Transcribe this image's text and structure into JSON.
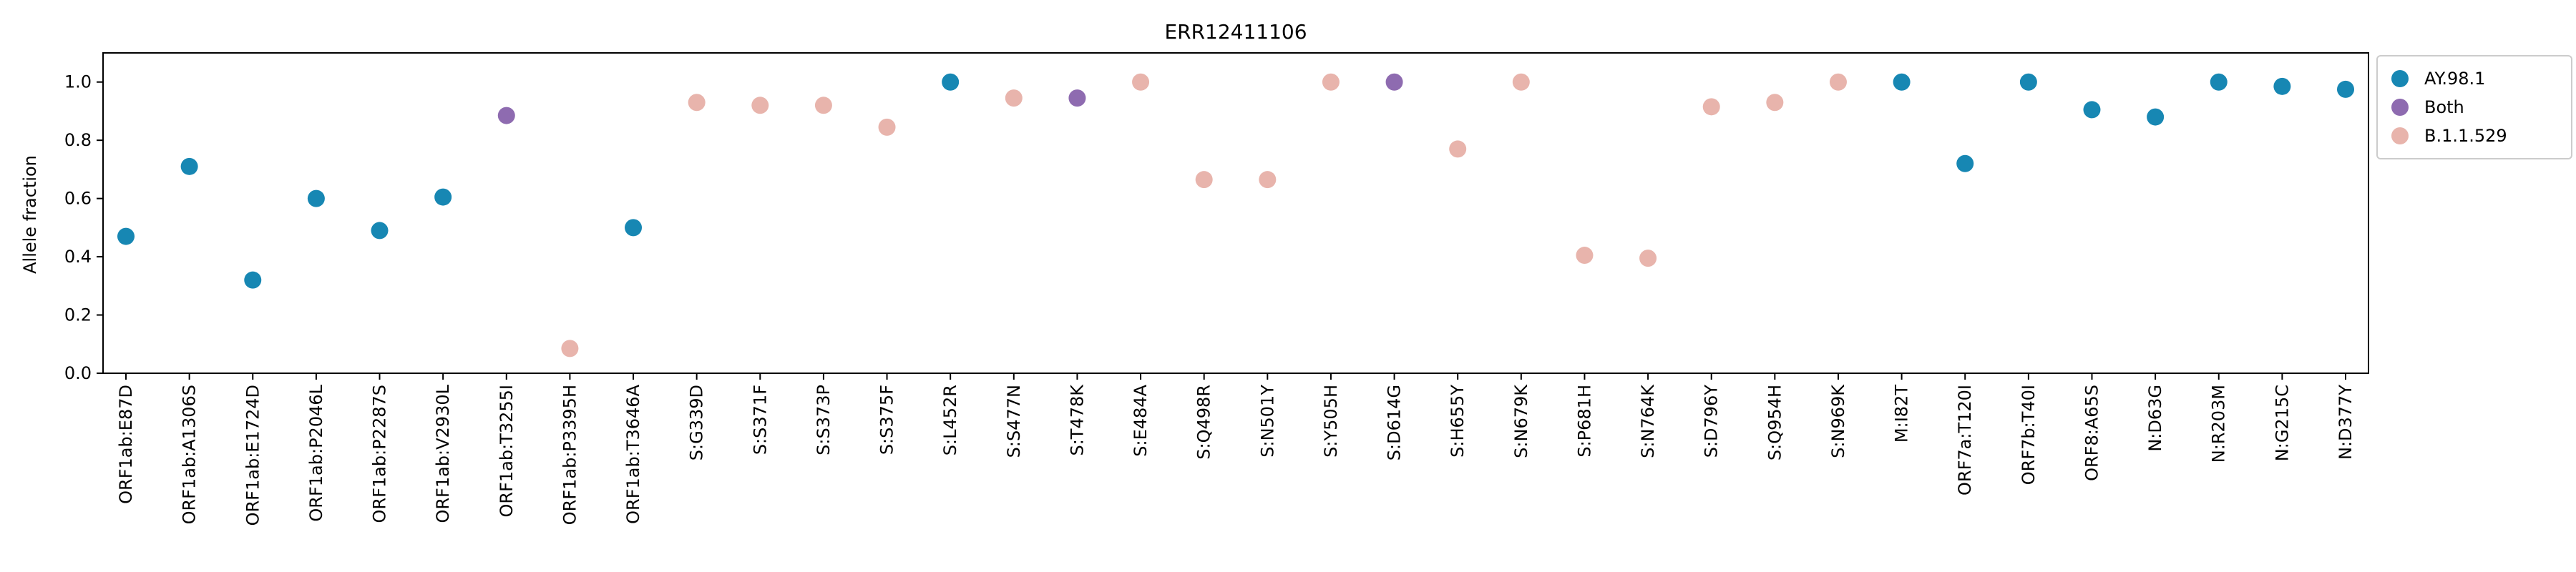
{
  "chart_data": {
    "type": "scatter",
    "title": "ERR12411106",
    "xlabel": "",
    "ylabel": "Allele fraction",
    "ylim": [
      0.0,
      1.1
    ],
    "yticks": [
      "0.0",
      "0.2",
      "0.4",
      "0.6",
      "0.8",
      "1.0"
    ],
    "grid": false,
    "legend_position": "right, outside plot, top",
    "categories": [
      "ORF1ab:E87D",
      "ORF1ab:A1306S",
      "ORF1ab:E1724D",
      "ORF1ab:P2046L",
      "ORF1ab:P2287S",
      "ORF1ab:V2930L",
      "ORF1ab:T3255I",
      "ORF1ab:P3395H",
      "ORF1ab:T3646A",
      "S:G339D",
      "S:S371F",
      "S:S373P",
      "S:S375F",
      "S:L452R",
      "S:S477N",
      "S:T478K",
      "S:E484A",
      "S:Q498R",
      "S:N501Y",
      "S:Y505H",
      "S:D614G",
      "S:H655Y",
      "S:N679K",
      "S:P681H",
      "S:N764K",
      "S:D796Y",
      "S:Q954H",
      "S:N969K",
      "M:I82T",
      "ORF7a:T120I",
      "ORF7b:T40I",
      "ORF8:A65S",
      "N:D63G",
      "N:R203M",
      "N:G215C",
      "N:D377Y"
    ],
    "series": [
      {
        "name": "AY.98.1",
        "color": "#1787b3"
      },
      {
        "name": "Both",
        "color": "#8e6bb0"
      },
      {
        "name": "B.1.1.529",
        "color": "#e8b4ac"
      }
    ],
    "points": [
      {
        "x": "ORF1ab:E87D",
        "y": 0.47,
        "series": "AY.98.1"
      },
      {
        "x": "ORF1ab:A1306S",
        "y": 0.71,
        "series": "AY.98.1"
      },
      {
        "x": "ORF1ab:E1724D",
        "y": 0.32,
        "series": "AY.98.1"
      },
      {
        "x": "ORF1ab:P2046L",
        "y": 0.6,
        "series": "AY.98.1"
      },
      {
        "x": "ORF1ab:P2287S",
        "y": 0.49,
        "series": "AY.98.1"
      },
      {
        "x": "ORF1ab:V2930L",
        "y": 0.605,
        "series": "AY.98.1"
      },
      {
        "x": "ORF1ab:T3255I",
        "y": 0.885,
        "series": "Both"
      },
      {
        "x": "ORF1ab:P3395H",
        "y": 0.085,
        "series": "B.1.1.529"
      },
      {
        "x": "ORF1ab:T3646A",
        "y": 0.5,
        "series": "AY.98.1"
      },
      {
        "x": "S:G339D",
        "y": 0.93,
        "series": "B.1.1.529"
      },
      {
        "x": "S:S371F",
        "y": 0.92,
        "series": "B.1.1.529"
      },
      {
        "x": "S:S373P",
        "y": 0.92,
        "series": "B.1.1.529"
      },
      {
        "x": "S:S375F",
        "y": 0.845,
        "series": "B.1.1.529"
      },
      {
        "x": "S:L452R",
        "y": 1.0,
        "series": "AY.98.1"
      },
      {
        "x": "S:S477N",
        "y": 0.945,
        "series": "B.1.1.529"
      },
      {
        "x": "S:T478K",
        "y": 0.945,
        "series": "Both"
      },
      {
        "x": "S:E484A",
        "y": 1.0,
        "series": "B.1.1.529"
      },
      {
        "x": "S:Q498R",
        "y": 0.665,
        "series": "B.1.1.529"
      },
      {
        "x": "S:N501Y",
        "y": 0.665,
        "series": "B.1.1.529"
      },
      {
        "x": "S:Y505H",
        "y": 1.0,
        "series": "B.1.1.529"
      },
      {
        "x": "S:D614G",
        "y": 1.0,
        "series": "Both"
      },
      {
        "x": "S:H655Y",
        "y": 0.77,
        "series": "B.1.1.529"
      },
      {
        "x": "S:N679K",
        "y": 1.0,
        "series": "B.1.1.529"
      },
      {
        "x": "S:P681H",
        "y": 0.405,
        "series": "B.1.1.529"
      },
      {
        "x": "S:N764K",
        "y": 0.395,
        "series": "B.1.1.529"
      },
      {
        "x": "S:D796Y",
        "y": 0.915,
        "series": "B.1.1.529"
      },
      {
        "x": "S:Q954H",
        "y": 0.93,
        "series": "B.1.1.529"
      },
      {
        "x": "S:N969K",
        "y": 1.0,
        "series": "B.1.1.529"
      },
      {
        "x": "M:I82T",
        "y": 1.0,
        "series": "AY.98.1"
      },
      {
        "x": "ORF7a:T120I",
        "y": 0.72,
        "series": "AY.98.1"
      },
      {
        "x": "ORF7b:T40I",
        "y": 1.0,
        "series": "AY.98.1"
      },
      {
        "x": "ORF8:A65S",
        "y": 0.905,
        "series": "AY.98.1"
      },
      {
        "x": "N:D63G",
        "y": 0.88,
        "series": "AY.98.1"
      },
      {
        "x": "N:R203M",
        "y": 1.0,
        "series": "AY.98.1"
      },
      {
        "x": "N:G215C",
        "y": 0.985,
        "series": "AY.98.1"
      },
      {
        "x": "N:D377Y",
        "y": 0.975,
        "series": "AY.98.1"
      }
    ]
  }
}
